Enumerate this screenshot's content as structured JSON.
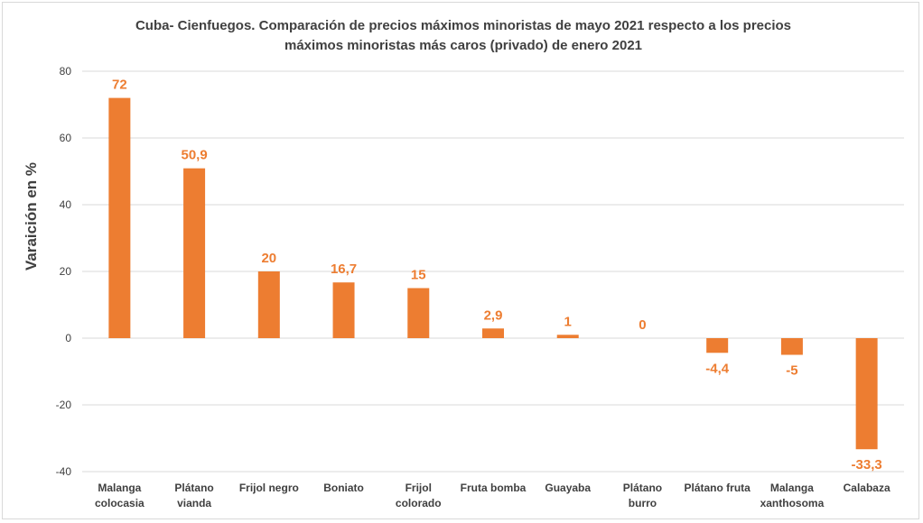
{
  "chart_data": {
    "type": "bar",
    "title_lines": [
      "Cuba- Cienfuegos. Comparación de precios máximos minoristas de mayo 2021 respecto a los precios",
      "máximos minoristas más caros (privado) de enero 2021"
    ],
    "ylabel": "Varaición en %",
    "ylim": [
      -40,
      80
    ],
    "yticks": [
      80,
      60,
      40,
      20,
      0,
      -20,
      -40
    ],
    "grid": true,
    "bar_color": "#ed7d31",
    "label_color": "#ed7d31",
    "categories": [
      [
        "Malanga",
        "colocasia"
      ],
      [
        "Plátano",
        "vianda"
      ],
      [
        "Frijol negro"
      ],
      [
        "Boniato"
      ],
      [
        "Frijol",
        "colorado"
      ],
      [
        "Fruta bomba"
      ],
      [
        "Guayaba"
      ],
      [
        "Plátano",
        "burro"
      ],
      [
        "Plátano fruta"
      ],
      [
        "Malanga",
        "xanthosoma"
      ],
      [
        "Calabaza"
      ]
    ],
    "values": [
      72,
      50.9,
      20,
      16.7,
      15,
      2.9,
      1,
      0,
      -4.4,
      -5,
      -33.3
    ],
    "value_labels": [
      "72",
      "50,9",
      "20",
      "16,7",
      "15",
      "2,9",
      "1",
      "0",
      "-4,4",
      "-5",
      "-33,3"
    ]
  }
}
